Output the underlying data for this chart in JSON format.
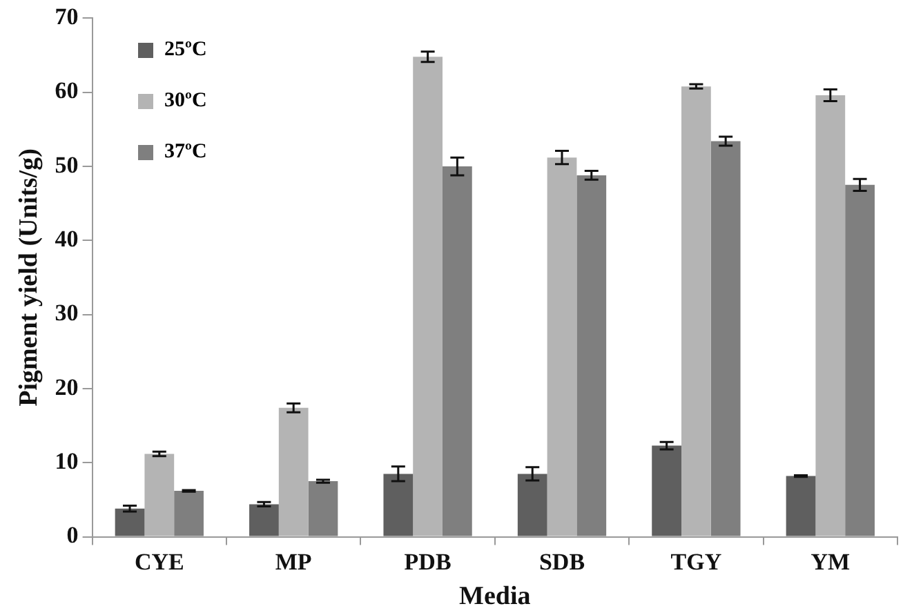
{
  "chart_data": {
    "type": "bar",
    "xlabel": "Media",
    "ylabel": "Pigment yield (Units/g)",
    "categories": [
      "CYE",
      "MP",
      "PDB",
      "SDB",
      "TGY",
      "YM"
    ],
    "series": [
      {
        "name": "25ºC",
        "color": "#5f5f5f",
        "values": [
          3.8,
          4.4,
          8.5,
          8.5,
          12.3,
          8.2
        ],
        "errors": [
          0.4,
          0.3,
          1.0,
          0.9,
          0.5,
          0.1
        ]
      },
      {
        "name": "30ºC",
        "color": "#b4b4b4",
        "values": [
          11.2,
          17.4,
          64.8,
          51.2,
          60.8,
          59.6
        ],
        "errors": [
          0.3,
          0.6,
          0.7,
          0.9,
          0.3,
          0.8
        ]
      },
      {
        "name": "37ºC",
        "color": "#7f7f7f",
        "values": [
          6.2,
          7.5,
          50.0,
          48.8,
          53.4,
          47.5
        ],
        "errors": [
          0.1,
          0.2,
          1.2,
          0.6,
          0.6,
          0.8
        ]
      }
    ],
    "ylim": [
      0,
      70
    ],
    "yticks": [
      0,
      10,
      20,
      30,
      40,
      50,
      60,
      70
    ],
    "grid": false,
    "legend": "top left"
  }
}
